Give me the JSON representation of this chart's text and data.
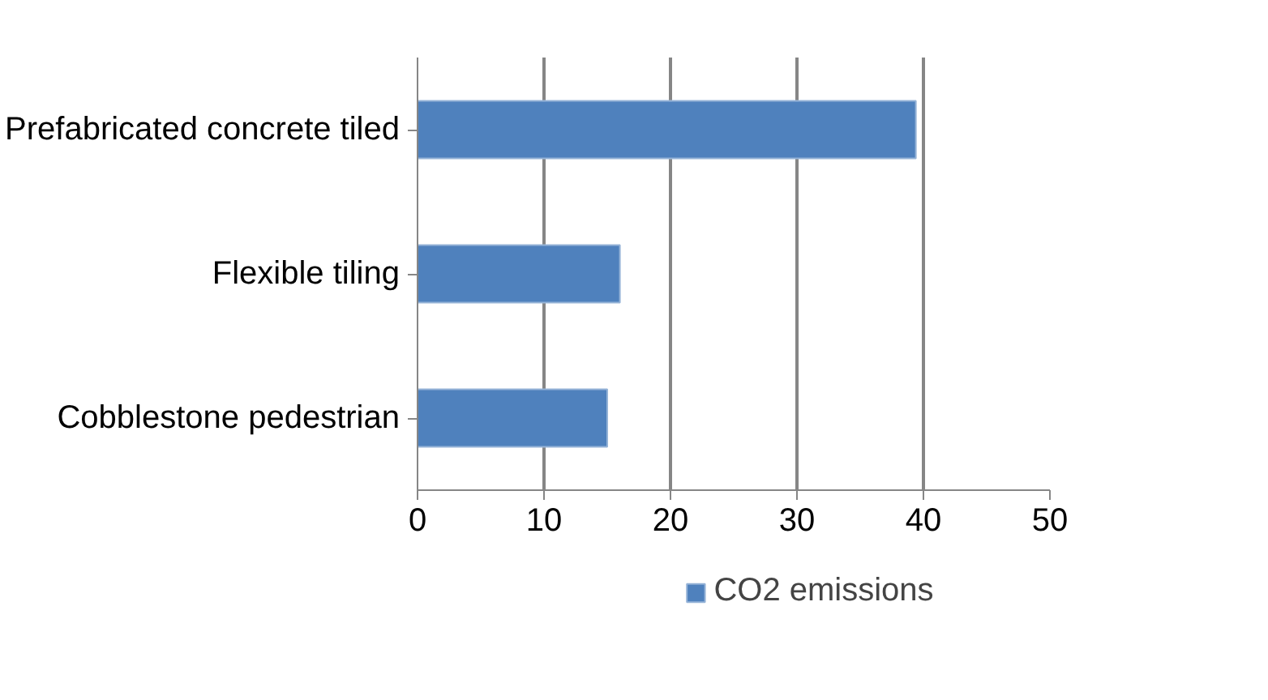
{
  "chart_data": {
    "type": "bar",
    "orientation": "horizontal",
    "categories": [
      "Prefabricated concrete tiled",
      "Flexible tiling",
      "Cobblestone pedestrian"
    ],
    "series": [
      {
        "name": "CO2 emissions",
        "color": "#4f81bd",
        "values": [
          39.4,
          16.0,
          15.0
        ]
      }
    ],
    "xlim": [
      0,
      50
    ],
    "xticks": [
      0,
      10,
      20,
      30,
      40,
      50
    ],
    "grid": "x",
    "legend": "bottom"
  }
}
